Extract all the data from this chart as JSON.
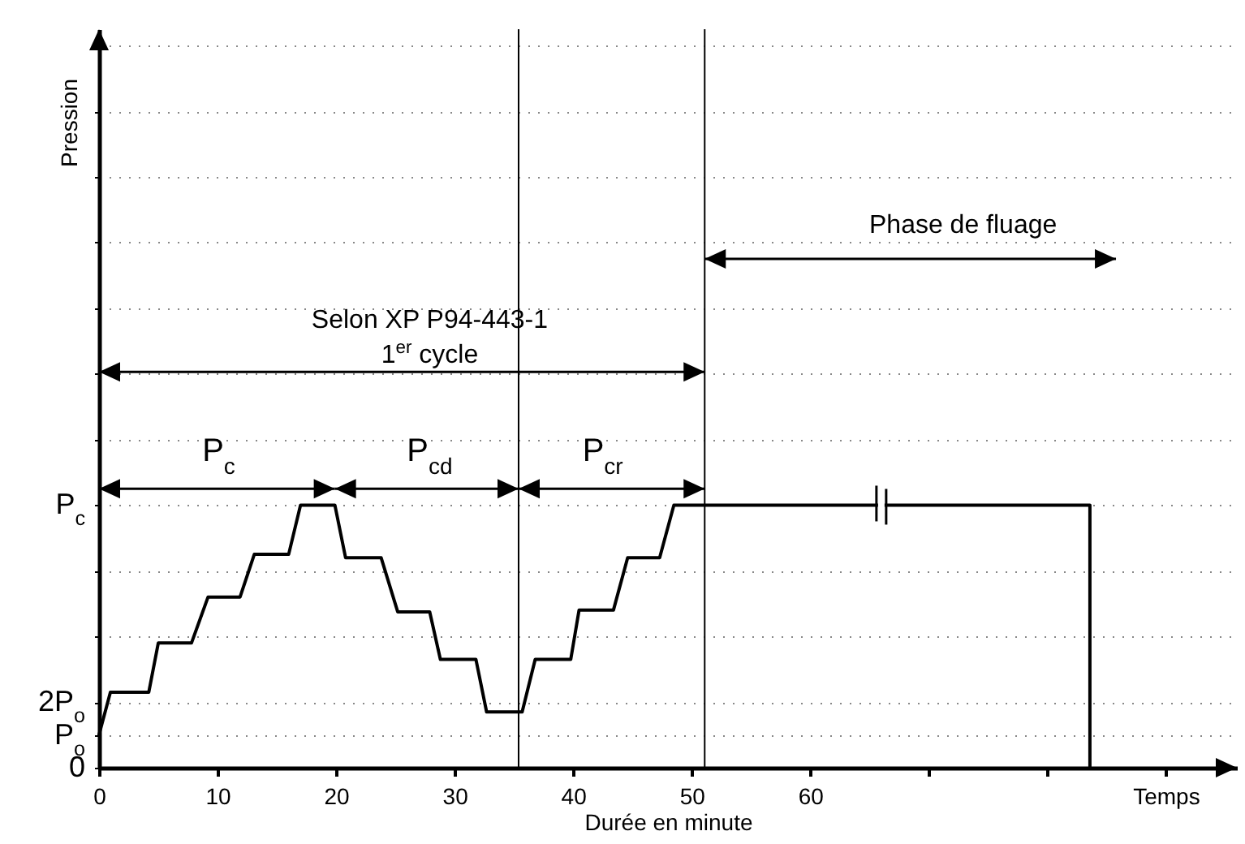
{
  "chart_data": {
    "type": "line",
    "xlabel": "Durée en minute",
    "ylabel": "Pression",
    "x": [
      0,
      0.96,
      4.2,
      5.0,
      7.8,
      9.2,
      11.9,
      13.1,
      16.0,
      17.0,
      19.9,
      20.8,
      23.8,
      25.2,
      27.9,
      28.8,
      31.8,
      32.7,
      35.7,
      36.8,
      39.8,
      40.5,
      43.4,
      44.6,
      47.3,
      48.5,
      83.6,
      83.6
    ],
    "series": [
      {
        "color": "#000000",
        "values": [
          1,
          2.3,
          2.3,
          3.8,
          3.8,
          5.2,
          5.2,
          6.5,
          6.5,
          8,
          8,
          6.4,
          6.4,
          4.75,
          4.75,
          3.3,
          3.3,
          1.7,
          1.7,
          3.3,
          3.3,
          4.8,
          4.8,
          6.4,
          6.4,
          8,
          8,
          0
        ]
      }
    ],
    "xlim": [
      0,
      96
    ],
    "xticks": [
      0,
      10,
      20,
      30,
      40,
      50,
      60,
      {
        "value": 70,
        "label": null
      },
      {
        "value": 80,
        "label": null
      },
      {
        "value": 90,
        "label": "Temps"
      }
    ],
    "ylim": [
      0,
      22.5
    ],
    "yticks": [
      {
        "value": 0,
        "label": "0"
      },
      {
        "value": 1,
        "label": "P$_{o}$"
      },
      {
        "value": 2,
        "label": "2P$_{o}$"
      },
      {
        "value": 4,
        "label": null
      },
      {
        "value": 6,
        "label": null
      },
      {
        "value": 8,
        "label": "P$_{c}$"
      },
      {
        "value": 10,
        "label": null
      },
      {
        "value": 12,
        "label": null
      },
      {
        "value": 14,
        "label": null
      },
      {
        "value": 16,
        "label": null
      },
      {
        "value": 18,
        "label": null
      },
      {
        "value": 20,
        "label": null
      },
      {
        "value": 22,
        "label": null
      }
    ],
    "grid": "y",
    "marker": "none",
    "line_style": "solid",
    "ref_lines": [
      {
        "axis": "x",
        "value": 51.1,
        "color": "#000000"
      },
      {
        "axis": "x",
        "value": 35.4,
        "color": "#000000"
      }
    ],
    "annotations": [
      "Selon XP P94-443-1",
      "1$^{er}$ cycle",
      "Phase de fluage",
      "P$_{c}$",
      "P$_{cd}$",
      "P$_{cr}$"
    ]
  }
}
